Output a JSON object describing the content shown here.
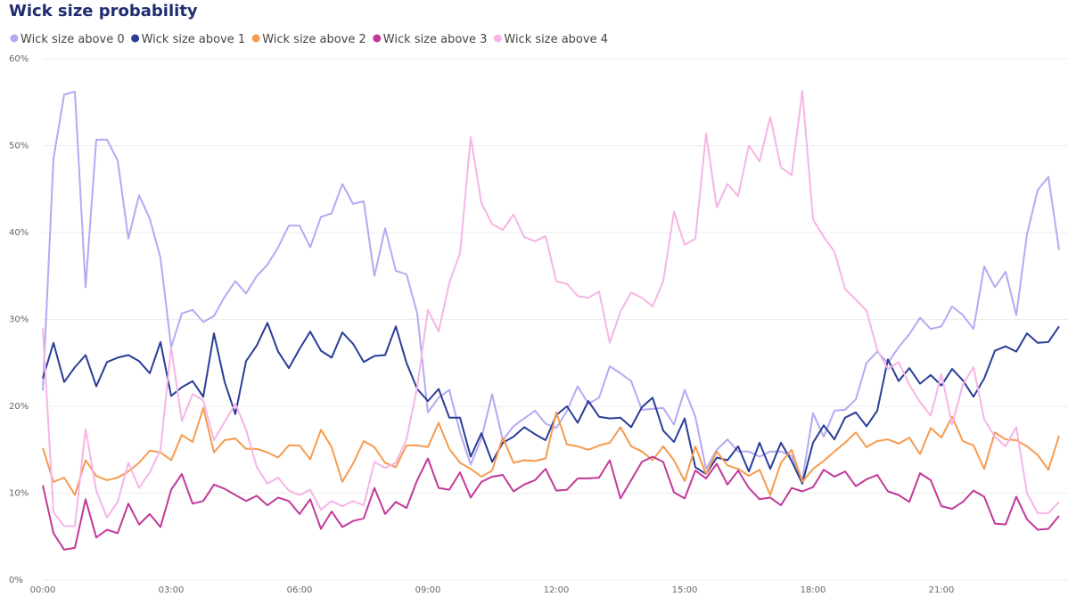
{
  "chart_data": {
    "type": "line",
    "title": "Wick size probability",
    "categories": [
      "00:00",
      null,
      null,
      null,
      null,
      null,
      null,
      null,
      null,
      null,
      null,
      null,
      "03:00",
      null,
      null,
      null,
      null,
      null,
      null,
      null,
      null,
      null,
      null,
      null,
      "06:00",
      null,
      null,
      null,
      null,
      null,
      null,
      null,
      null,
      null,
      null,
      null,
      "09:00",
      null,
      null,
      null,
      null,
      null,
      null,
      null,
      null,
      null,
      null,
      null,
      "12:00",
      null,
      null,
      null,
      null,
      null,
      null,
      null,
      null,
      null,
      null,
      null,
      "15:00",
      null,
      null,
      null,
      null,
      null,
      null,
      null,
      null,
      null,
      null,
      null,
      "18:00",
      null,
      null,
      null,
      null,
      null,
      null,
      null,
      null,
      null,
      null,
      null,
      "21:00",
      null,
      null,
      null,
      null,
      null,
      null,
      null,
      null,
      null,
      null,
      null
    ],
    "ylim": [
      0,
      60
    ],
    "yticks": [
      {
        "value": 0,
        "label": "0%"
      },
      {
        "value": 10,
        "label": "10%"
      },
      {
        "value": 20,
        "label": "20%"
      },
      {
        "value": 30,
        "label": "30%"
      },
      {
        "value": 40,
        "label": "40%"
      },
      {
        "value": 50,
        "label": "50%"
      },
      {
        "value": 60,
        "label": "60%"
      }
    ],
    "grid": true,
    "series": [
      {
        "name": "Wick size above 0",
        "color": "#b5a9f2",
        "values": [
          21.8,
          48.5,
          55.9,
          56.2,
          33.7,
          50.7,
          50.7,
          48.3,
          39.3,
          44.3,
          41.6,
          37.1,
          26.8,
          30.7,
          31.1,
          29.7,
          30.4,
          32.6,
          34.4,
          33,
          35,
          36.3,
          38.3,
          40.8,
          40.8,
          38.3,
          41.8,
          42.2,
          45.6,
          43.3,
          43.6,
          35,
          40.5,
          35.6,
          35.2,
          30.7,
          19.3,
          21,
          21.9,
          17,
          13.3,
          16.3,
          21.4,
          16.1,
          17.7,
          18.6,
          19.5,
          18,
          17.5,
          19.5,
          22.3,
          20.3,
          21,
          24.6,
          23.8,
          22.9,
          19.6,
          19.7,
          19.8,
          17.9,
          21.9,
          18.8,
          12.8,
          15,
          16.2,
          14.8,
          14.8,
          14.2,
          14.8,
          14.8,
          14.3,
          11.5,
          19.2,
          16.5,
          19.5,
          19.6,
          20.8,
          25,
          26.3,
          25,
          26.8,
          28.3,
          30.2,
          28.9,
          29.2,
          31.5,
          30.5,
          28.9,
          36.1,
          33.7,
          35.5,
          30.5,
          39.8,
          44.9,
          46.4,
          38
        ]
      },
      {
        "name": "Wick size above 1",
        "color": "#2b3d97",
        "values": [
          23.2,
          27.3,
          22.8,
          24.5,
          25.9,
          22.3,
          25.1,
          25.6,
          25.9,
          25.2,
          23.8,
          27.4,
          21.2,
          22.2,
          22.9,
          21.1,
          28.4,
          22.8,
          19.1,
          25.2,
          27,
          29.6,
          26.3,
          24.4,
          26.6,
          28.6,
          26.4,
          25.6,
          28.5,
          27.2,
          25.1,
          25.8,
          25.9,
          29.2,
          25,
          22,
          20.6,
          22,
          18.7,
          18.7,
          14.2,
          16.9,
          13.6,
          15.8,
          16.5,
          17.6,
          16.8,
          16.1,
          19,
          20,
          18.1,
          20.6,
          18.8,
          18.6,
          18.7,
          17.6,
          19.9,
          21,
          17.2,
          15.9,
          18.6,
          13,
          12.2,
          14.1,
          13.8,
          15.4,
          12.5,
          15.8,
          12.8,
          15.8,
          13.7,
          11.1,
          15.8,
          17.8,
          16.2,
          18.7,
          19.3,
          17.7,
          19.5,
          25.4,
          22.9,
          24.4,
          22.6,
          23.6,
          22.4,
          24.3,
          23,
          21.1,
          23.2,
          26.4,
          26.9,
          26.3,
          28.4,
          27.3,
          27.4,
          29.2
        ]
      },
      {
        "name": "Wick size above 2",
        "color": "#f59b4f",
        "values": [
          15.2,
          11.3,
          11.8,
          9.8,
          13.8,
          12,
          11.5,
          11.8,
          12.5,
          13.5,
          14.9,
          14.7,
          13.8,
          16.7,
          15.9,
          19.8,
          14.7,
          16.1,
          16.3,
          15.1,
          15.1,
          14.7,
          14.1,
          15.5,
          15.5,
          13.9,
          17.3,
          15.3,
          11.3,
          13.4,
          16,
          15.3,
          13.5,
          13,
          15.5,
          15.5,
          15.3,
          18.1,
          15.1,
          13.5,
          12.8,
          11.9,
          12.6,
          16.4,
          13.5,
          13.8,
          13.7,
          14,
          19.3,
          15.6,
          15.4,
          15,
          15.5,
          15.8,
          17.6,
          15.4,
          14.8,
          13.8,
          15.4,
          13.8,
          11.4,
          15.4,
          12.2,
          14.8,
          13.2,
          12.8,
          12,
          12.7,
          9.8,
          13.5,
          15,
          11.3,
          12.8,
          13.7,
          14.8,
          15.8,
          17,
          15.3,
          16,
          16.2,
          15.7,
          16.4,
          14.5,
          17.5,
          16.4,
          18.8,
          16,
          15.5,
          12.8,
          17,
          16.2,
          16.1,
          15.4,
          14.4,
          12.7,
          16.6
        ]
      },
      {
        "name": "Wick size above 3",
        "color": "#c2399a",
        "values": [
          10.9,
          5.4,
          3.5,
          3.7,
          9.3,
          4.9,
          5.8,
          5.4,
          8.8,
          6.4,
          7.6,
          6.1,
          10.4,
          12.2,
          8.8,
          9.1,
          11,
          10.5,
          9.8,
          9.1,
          9.7,
          8.6,
          9.5,
          9.1,
          7.6,
          9.3,
          5.9,
          7.9,
          6.1,
          6.8,
          7.1,
          10.6,
          7.6,
          9,
          8.3,
          11.5,
          14,
          10.6,
          10.4,
          12.4,
          9.5,
          11.3,
          11.9,
          12.1,
          10.2,
          11,
          11.5,
          12.8,
          10.3,
          10.4,
          11.7,
          11.7,
          11.8,
          13.8,
          9.4,
          11.5,
          13.6,
          14.2,
          13.6,
          10.1,
          9.4,
          12.6,
          11.7,
          13.4,
          11,
          12.6,
          10.6,
          9.3,
          9.5,
          8.6,
          10.6,
          10.2,
          10.7,
          12.7,
          11.9,
          12.5,
          10.8,
          11.6,
          12.1,
          10.2,
          9.8,
          9,
          12.3,
          11.5,
          8.5,
          8.2,
          9,
          10.3,
          9.6,
          6.5,
          6.4,
          9.6,
          7,
          5.8,
          5.9,
          7.4
        ]
      },
      {
        "name": "Wick size above 4",
        "color": "#f5b5e6",
        "values": [
          29,
          7.8,
          6.2,
          6.2,
          17.4,
          10.3,
          7.2,
          9,
          13.5,
          10.6,
          12.4,
          15,
          26.8,
          18.3,
          21.4,
          20.7,
          16.1,
          18.2,
          20.3,
          17.3,
          13,
          11.1,
          11.8,
          10.3,
          9.8,
          10.4,
          8.1,
          9.1,
          8.5,
          9.1,
          8.6,
          13.6,
          12.9,
          13.5,
          16.2,
          22.2,
          31.1,
          28.6,
          34.2,
          37.6,
          51,
          43.4,
          41,
          40.3,
          42.1,
          39.5,
          39,
          39.6,
          34.4,
          34.1,
          32.7,
          32.5,
          33.2,
          27.3,
          30.9,
          33.1,
          32.5,
          31.5,
          34.4,
          42.4,
          38.6,
          39.3,
          51.4,
          42.9,
          45.6,
          44.2,
          50,
          48.2,
          53.3,
          47.5,
          46.6,
          56.3,
          41.5,
          39.5,
          37.8,
          33.5,
          32.3,
          31,
          26.5,
          24.3,
          25.1,
          22.5,
          20.5,
          18.9,
          23.7,
          17.9,
          22.5,
          24.5,
          18.5,
          16.5,
          15.4,
          17.6,
          10,
          7.7,
          7.7,
          9
        ]
      }
    ]
  }
}
